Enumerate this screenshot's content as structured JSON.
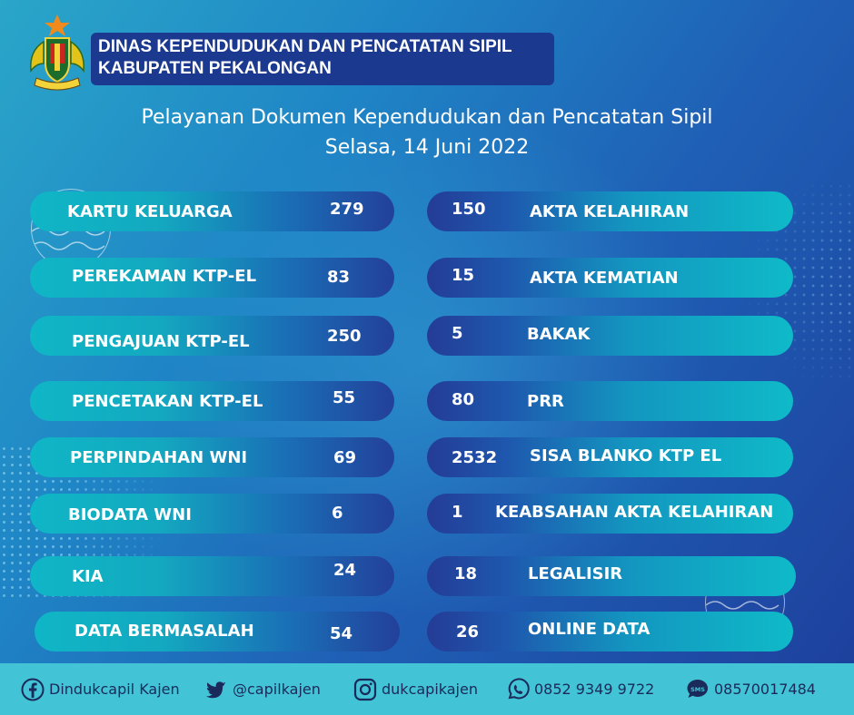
{
  "header": {
    "org_line1": "DINAS KEPENDUDUKAN DAN PENCATATAN SIPIL",
    "org_line2": "KABUPATEN PEKALONGAN"
  },
  "title": {
    "line1": "Pelayanan Dokumen Kependudukan dan Pencatatan Sipil",
    "line2": "Selasa, 14 Juni 2022"
  },
  "services_left": [
    {
      "label": "KARTU KELUARGA",
      "value": "279"
    },
    {
      "label": "PEREKAMAN KTP-EL",
      "value": "83"
    },
    {
      "label": "PENGAJUAN KTP-EL",
      "value": "250"
    },
    {
      "label": "PENCETAKAN KTP-EL",
      "value": "55"
    },
    {
      "label": "PERPINDAHAN WNI",
      "value": "69"
    },
    {
      "label": "BIODATA WNI",
      "value": "6"
    },
    {
      "label": "KIA",
      "value": "24"
    },
    {
      "label": "DATA BERMASALAH",
      "value": "54"
    }
  ],
  "services_right": [
    {
      "label": "AKTA KELAHIRAN",
      "value": "150"
    },
    {
      "label": "AKTA KEMATIAN",
      "value": "15"
    },
    {
      "label": "BAKAK",
      "value": "5"
    },
    {
      "label": "PRR",
      "value": "80"
    },
    {
      "label": "SISA BLANKO KTP EL",
      "value": "2532"
    },
    {
      "label": "KEABSAHAN AKTA KELAHIRAN",
      "value": "1"
    },
    {
      "label": "LEGALISIR",
      "value": "18"
    },
    {
      "label": "ONLINE DATA",
      "value": "26"
    }
  ],
  "footer": {
    "facebook": "Dindukcapil Kajen",
    "twitter": "@capilkajen",
    "instagram": "dukcapikajen",
    "whatsapp": "0852 9349 9722",
    "sms": "08570017484",
    "sms_icon_label": "SMS"
  },
  "icons": {
    "logo": "regency-coat-of-arms-icon",
    "facebook": "facebook-icon",
    "twitter": "twitter-bird-icon",
    "instagram": "instagram-icon",
    "whatsapp": "whatsapp-icon",
    "sms": "sms-bubble-icon"
  },
  "colors": {
    "header_box": "#1b3a8f",
    "footer": "#42c3d6",
    "footer_text": "#1a2a5a",
    "pill_teal": "#0fb6c6",
    "pill_navy": "#23409a"
  }
}
